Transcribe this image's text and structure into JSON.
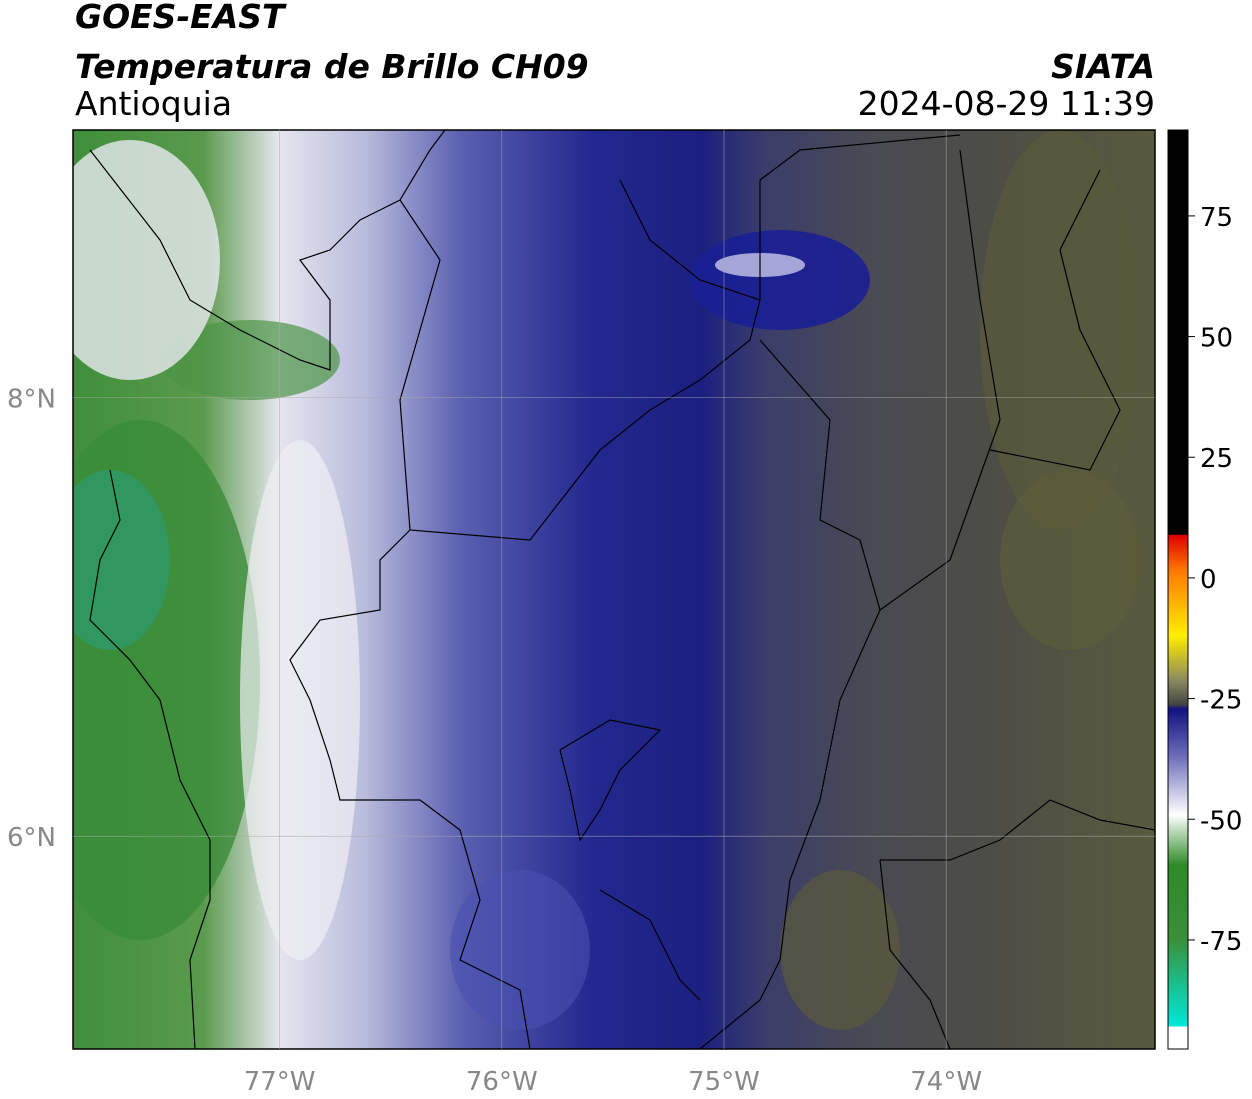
{
  "header": {
    "title": "GOES-EAST",
    "subtitle": "Temperatura de Brillo CH09",
    "region": "Antioquia",
    "source": "SIATA",
    "timestamp": "2024-08-29 11:39"
  },
  "map": {
    "lonlim": [
      -77.93,
      -73.06
    ],
    "latlim": [
      5.03,
      9.22
    ],
    "lonticks": [
      {
        "value": -77,
        "label": "77°W"
      },
      {
        "value": -76,
        "label": "76°W"
      },
      {
        "value": -75,
        "label": "75°W"
      },
      {
        "value": -74,
        "label": "74°W"
      }
    ],
    "latticks": [
      {
        "value": 8,
        "label": "8°N"
      },
      {
        "value": 6,
        "label": "6°N"
      }
    ]
  },
  "colorbar": {
    "lim": [
      -97.6,
      92.8
    ],
    "ticks": [
      75,
      50,
      25,
      0,
      -25,
      -50,
      -75
    ]
  }
}
